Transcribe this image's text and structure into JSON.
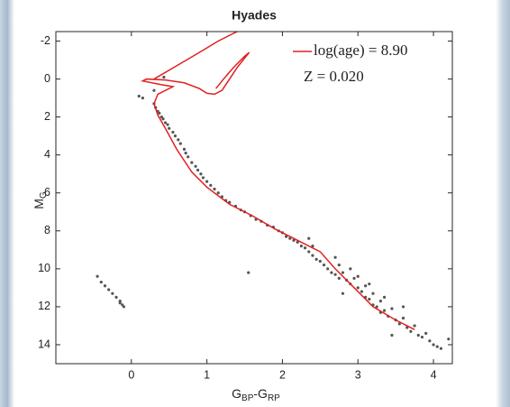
{
  "chart_data": {
    "type": "scatter",
    "title": "Hyades",
    "xlabel": {
      "parts": [
        "G",
        "BP",
        "-G",
        "RP"
      ]
    },
    "ylabel": {
      "main": "M",
      "sub": "G"
    },
    "xlim": [
      -1,
      4.25
    ],
    "ylim": [
      -2.5,
      15
    ],
    "y_reversed": true,
    "xticks": [
      0,
      1,
      2,
      3,
      4
    ],
    "yticks": [
      -2,
      0,
      2,
      4,
      6,
      8,
      10,
      12,
      14
    ],
    "points": {
      "color": "#555555",
      "x": [
        0.3,
        0.32,
        0.35,
        0.37,
        0.4,
        0.42,
        0.45,
        0.48,
        0.5,
        0.55,
        0.58,
        0.62,
        0.65,
        0.7,
        0.72,
        0.75,
        0.8,
        0.85,
        0.88,
        0.92,
        0.95,
        1.0,
        1.05,
        1.1,
        1.15,
        1.2,
        1.25,
        1.3,
        1.38,
        1.45,
        1.5,
        1.58,
        1.65,
        1.72,
        1.8,
        1.88,
        1.95,
        2.0,
        2.05,
        2.1,
        2.15,
        2.2,
        2.25,
        2.3,
        2.35,
        2.4,
        2.45,
        2.5,
        2.4,
        2.55,
        2.6,
        2.65,
        2.7,
        2.75,
        2.8,
        2.85,
        2.9,
        2.95,
        3.0,
        3.05,
        3.1,
        3.1,
        3.15,
        3.2,
        3.2,
        3.25,
        3.3,
        3.3,
        3.35,
        3.4,
        3.45,
        3.5,
        3.55,
        3.6,
        3.65,
        3.7,
        3.75,
        3.8,
        3.85,
        3.9,
        3.95,
        4.0,
        4.05,
        4.1,
        4.2,
        3.45,
        2.35,
        2.75,
        2.9,
        3.0,
        3.15,
        3.35,
        2.8,
        3.6,
        2.7,
        0.1,
        0.15,
        0.3,
        0.43,
        -0.45,
        -0.4,
        -0.35,
        -0.3,
        -0.25,
        -0.2,
        -0.15,
        -0.12,
        -0.1,
        -0.15,
        1.55
      ],
      "y": [
        1.3,
        1.5,
        1.7,
        1.8,
        2.0,
        2.1,
        2.3,
        2.4,
        2.6,
        2.8,
        3.0,
        3.2,
        3.4,
        3.7,
        3.9,
        4.1,
        4.4,
        4.6,
        4.8,
        5.0,
        5.2,
        5.4,
        5.6,
        5.8,
        6.0,
        6.2,
        6.4,
        6.5,
        6.7,
        6.9,
        7.0,
        7.2,
        7.4,
        7.5,
        7.7,
        7.8,
        8.0,
        8.1,
        8.3,
        8.4,
        8.5,
        8.6,
        8.8,
        8.9,
        9.1,
        9.3,
        9.5,
        9.6,
        8.8,
        9.8,
        10.0,
        10.2,
        10.3,
        10.5,
        10.2,
        10.6,
        10.8,
        10.5,
        11.0,
        11.2,
        10.9,
        11.5,
        11.6,
        11.3,
        11.9,
        12.0,
        11.7,
        12.3,
        12.2,
        12.5,
        12.1,
        12.7,
        12.9,
        12.6,
        13.1,
        13.3,
        13.0,
        13.5,
        13.6,
        13.4,
        13.8,
        14.0,
        14.1,
        14.2,
        13.7,
        13.5,
        8.4,
        9.8,
        10.0,
        10.4,
        10.8,
        11.5,
        11.3,
        12.0,
        9.4,
        0.9,
        1.0,
        0.6,
        -0.1,
        10.4,
        10.7,
        10.9,
        11.1,
        11.3,
        11.5,
        11.7,
        11.9,
        12.0,
        11.8,
        10.2
      ]
    },
    "isochrone": {
      "name": "log(age) = 8.90",
      "color": "#e02020",
      "x": [
        3.75,
        3.5,
        3.2,
        3.0,
        2.7,
        2.5,
        2.2,
        1.9,
        1.6,
        1.3,
        1.0,
        0.8,
        0.6,
        0.45,
        0.35,
        0.3,
        0.35,
        0.55,
        0.4,
        0.15,
        0.2,
        0.45,
        0.7,
        0.9,
        1.0,
        1.1,
        1.2,
        1.3,
        1.4,
        1.5,
        1.56,
        1.5,
        1.35,
        1.2,
        1.12,
        null,
        0.3,
        0.6,
        0.9,
        1.15,
        1.4,
        1.7
      ],
      "y": [
        13.2,
        12.7,
        12.0,
        11.2,
        10.0,
        9.1,
        8.5,
        7.9,
        7.2,
        6.6,
        5.7,
        4.9,
        3.7,
        2.6,
        1.9,
        1.3,
        0.8,
        0.4,
        0.3,
        0.1,
        0.0,
        0.05,
        0.2,
        0.5,
        0.75,
        0.8,
        0.6,
        0.0,
        -0.6,
        -1.1,
        -1.4,
        -1.2,
        -0.6,
        0.1,
        0.5,
        null,
        0.0,
        -0.7,
        -1.4,
        -2.0,
        -2.5,
        -3.0
      ]
    },
    "annotation": "Z = 0.020"
  }
}
